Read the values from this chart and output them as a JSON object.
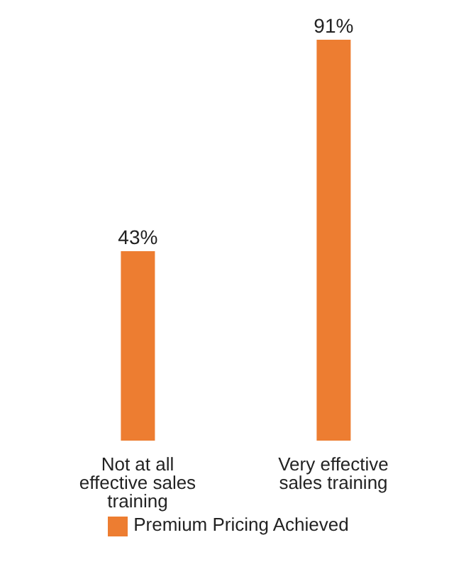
{
  "chart_data": {
    "type": "bar",
    "categories": [
      "Not at all effective sales training",
      "Very effective sales training"
    ],
    "series": [
      {
        "name": "Premium Pricing Achieved",
        "color": "#ed7d31",
        "values": [
          43,
          91
        ],
        "value_labels": [
          "43%",
          "91%"
        ]
      }
    ],
    "legend": "bottom"
  }
}
